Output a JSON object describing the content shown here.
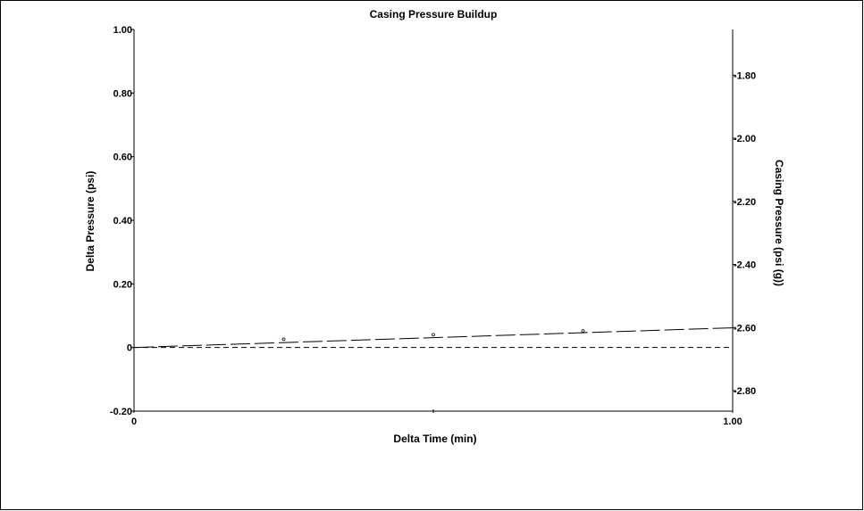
{
  "chart_data": {
    "type": "line",
    "title": "Casing Pressure Buildup",
    "xlabel": "Delta Time (min)",
    "ylabel": "Delta Pressure (psi)",
    "y2label": "Casing Pressure (psi (g))",
    "xlim": [
      0,
      1.0
    ],
    "ylim": [
      -0.2,
      1.0
    ],
    "y2lim": [
      -2.865,
      -1.655
    ],
    "x_ticks": [
      {
        "value": 0,
        "label": "0"
      },
      {
        "value": 0.5,
        "label": ""
      },
      {
        "value": 1.0,
        "label": "1.00"
      }
    ],
    "y_ticks": [
      {
        "value": -0.2,
        "label": "-0.20"
      },
      {
        "value": 0,
        "label": "0"
      },
      {
        "value": 0.2,
        "label": "0.20"
      },
      {
        "value": 0.4,
        "label": "0.40"
      },
      {
        "value": 0.6,
        "label": "0.60"
      },
      {
        "value": 0.8,
        "label": "0.80"
      },
      {
        "value": 1.0,
        "label": "1.00"
      }
    ],
    "y2_ticks": [
      {
        "value": -2.8,
        "label": "-2.80"
      },
      {
        "value": -2.6,
        "label": "-2.60"
      },
      {
        "value": -2.4,
        "label": "-2.40"
      },
      {
        "value": -2.2,
        "label": "-2.20"
      },
      {
        "value": -2.0,
        "label": "-2.00"
      },
      {
        "value": -1.8,
        "label": "-1.80"
      }
    ],
    "grid": false,
    "legend": "none",
    "series": [
      {
        "style": "points",
        "x": [
          0.25,
          0.5,
          0.75
        ],
        "y": [
          0.026,
          0.04,
          0.052
        ]
      },
      {
        "style": "long-dash",
        "x": [
          0,
          1.0
        ],
        "y": [
          0.0,
          0.062
        ]
      },
      {
        "style": "short-dash",
        "x": [
          0,
          1.0
        ],
        "y": [
          0.0,
          0.0
        ]
      }
    ]
  }
}
